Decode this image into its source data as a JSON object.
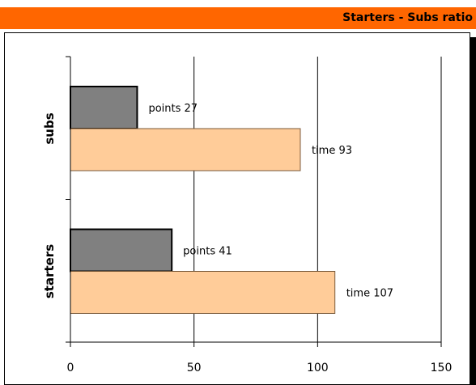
{
  "header": {
    "title": "Starters - Subs ratio"
  },
  "chart_data": {
    "type": "bar",
    "orientation": "horizontal",
    "title": "Starters - Subs ratio",
    "categories": [
      "subs",
      "starters"
    ],
    "series": [
      {
        "name": "points",
        "values": [
          27,
          41
        ],
        "color": "#808080"
      },
      {
        "name": "time",
        "values": [
          93,
          107
        ],
        "color": "#ffcc99"
      }
    ],
    "data_labels": [
      [
        "points 27",
        "points 41"
      ],
      [
        "time 93",
        "time 107"
      ]
    ],
    "xlim": [
      0,
      150
    ],
    "xticks": [
      0,
      50,
      100,
      150
    ],
    "xlabel": "",
    "ylabel": "",
    "grid": true
  }
}
